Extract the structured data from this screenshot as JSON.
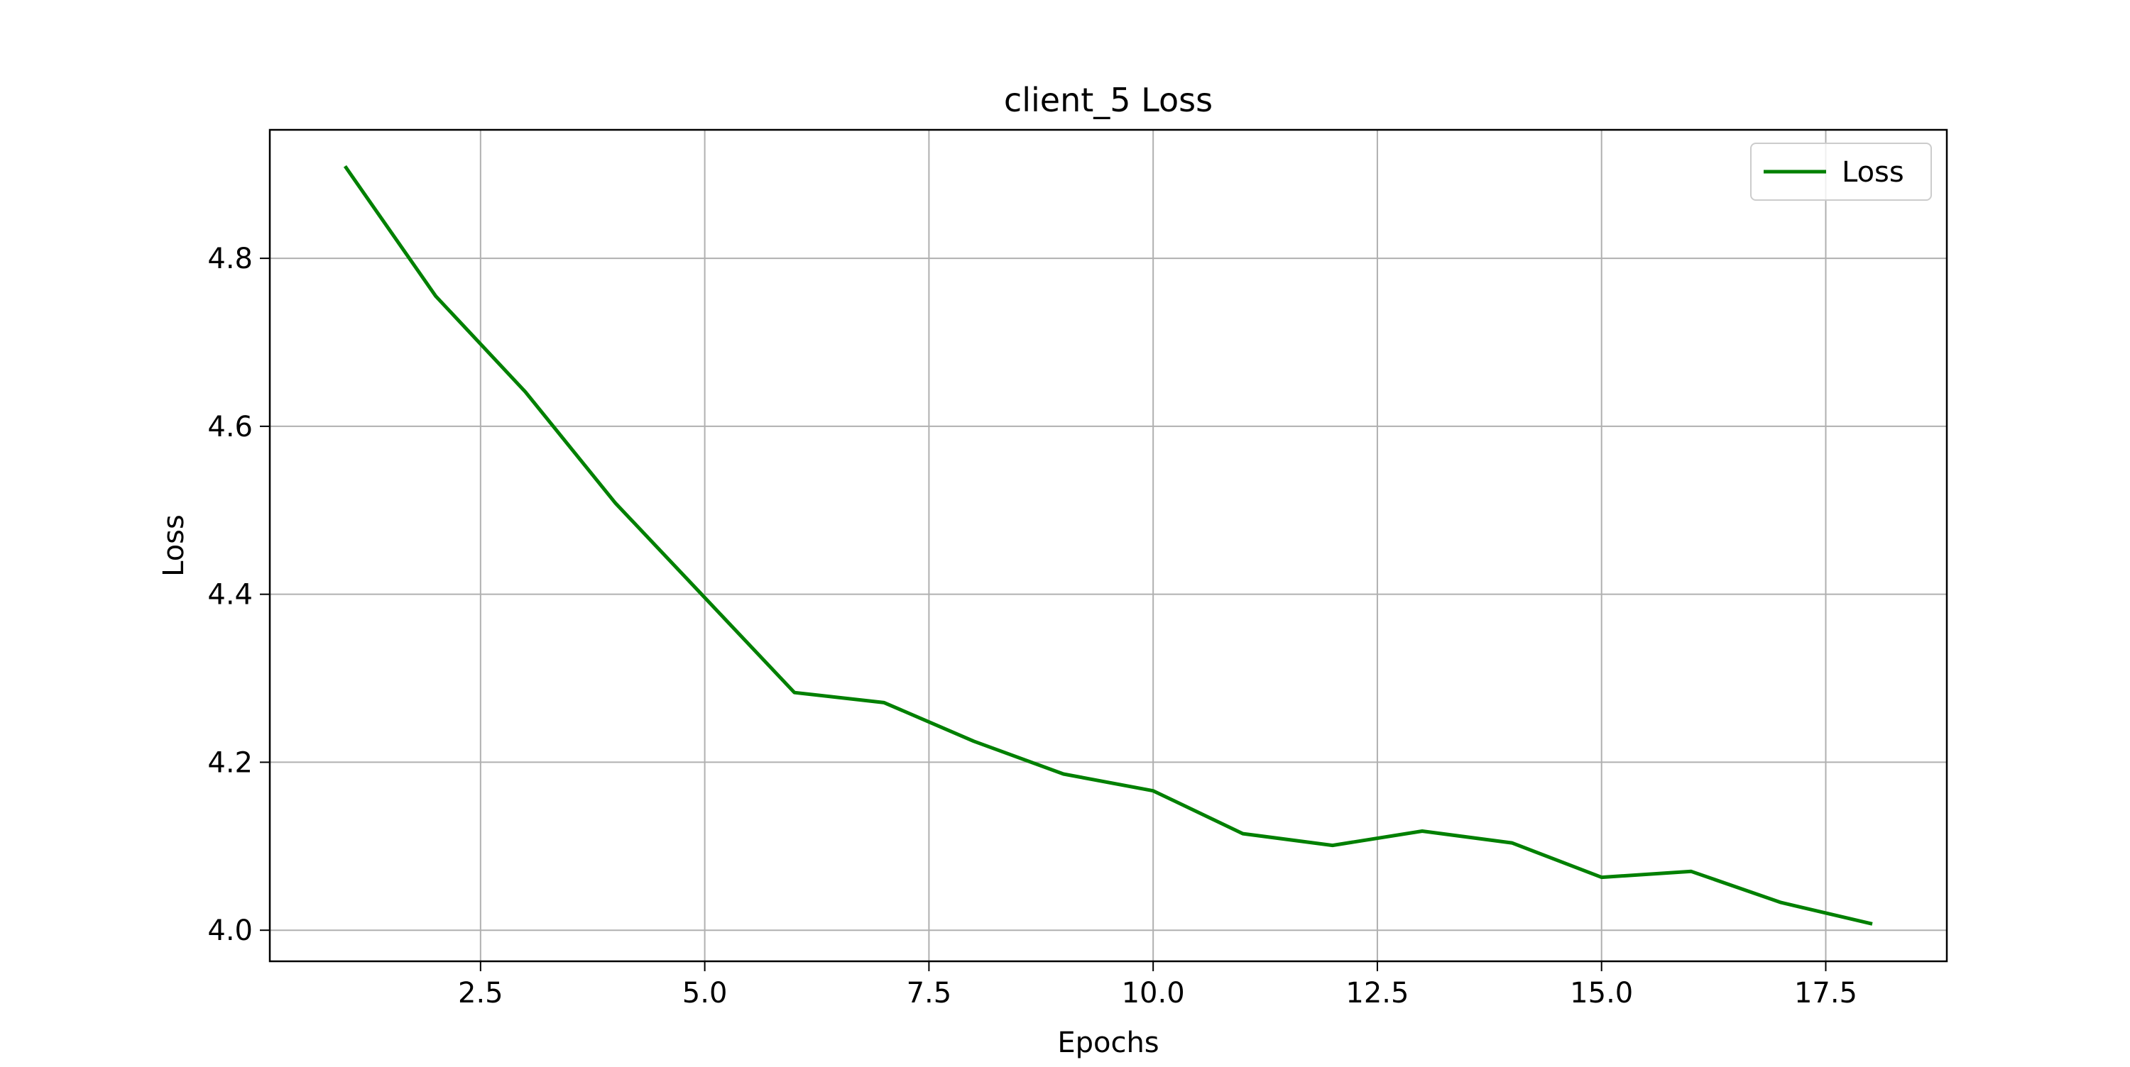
{
  "chart_data": {
    "type": "line",
    "title": "client_5 Loss",
    "xlabel": "Epochs",
    "ylabel": "Loss",
    "xlim": [
      0.15,
      18.85
    ],
    "ylim": [
      3.963,
      4.953
    ],
    "xticks": [
      2.5,
      5.0,
      7.5,
      10.0,
      12.5,
      15.0,
      17.5
    ],
    "xtick_labels": [
      "2.5",
      "5.0",
      "7.5",
      "10.0",
      "12.5",
      "15.0",
      "17.5"
    ],
    "yticks": [
      4.0,
      4.2,
      4.4,
      4.6,
      4.8
    ],
    "ytick_labels": [
      "4.0",
      "4.2",
      "4.4",
      "4.6",
      "4.8"
    ],
    "grid": true,
    "legend_position": "top-right",
    "series": [
      {
        "name": "Loss",
        "color": "#008000",
        "x": [
          1,
          2,
          3,
          4,
          5,
          6,
          7,
          8,
          9,
          10,
          11,
          12,
          13,
          14,
          15,
          16,
          17,
          18
        ],
        "y": [
          4.908,
          4.755,
          4.641,
          4.509,
          4.396,
          4.283,
          4.271,
          4.225,
          4.186,
          4.166,
          4.115,
          4.101,
          4.118,
          4.104,
          4.063,
          4.07,
          4.033,
          4.008
        ]
      }
    ]
  }
}
